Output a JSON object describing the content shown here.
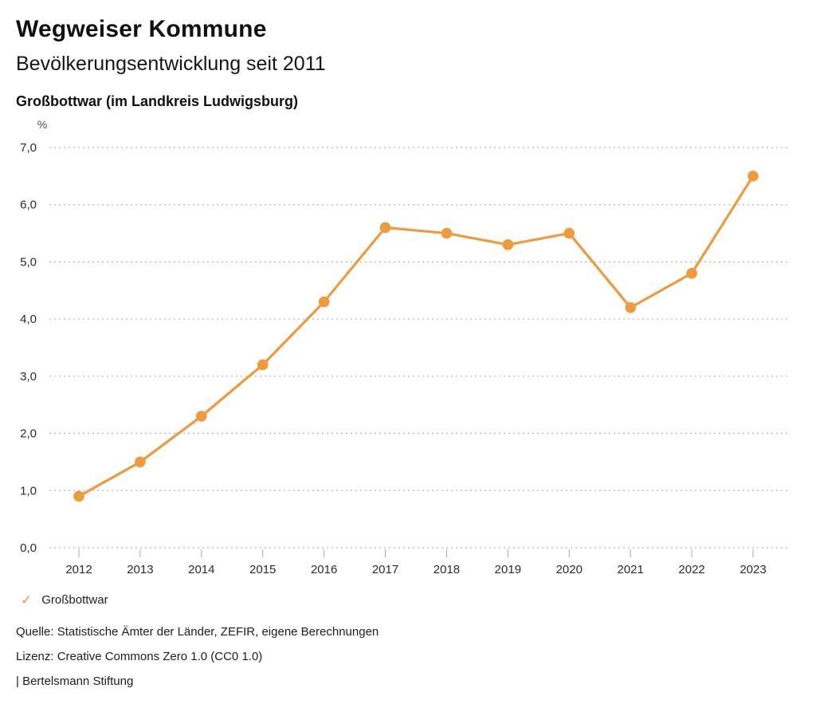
{
  "header": {
    "title": "Wegweiser Kommune",
    "subtitle": "Bevölkerungsentwicklung seit 2011",
    "region": "Großbottwar (im Landkreis Ludwigsburg)"
  },
  "chart_data": {
    "type": "line",
    "title": "Bevölkerungsentwicklung seit 2011",
    "xlabel": "",
    "ylabel": "%",
    "x": [
      2012,
      2013,
      2014,
      2015,
      2016,
      2017,
      2018,
      2019,
      2020,
      2021,
      2022,
      2023
    ],
    "series": [
      {
        "name": "Großbottwar",
        "values": [
          0.9,
          1.5,
          2.3,
          3.2,
          4.3,
          5.6,
          5.5,
          5.3,
          5.5,
          4.2,
          4.8,
          6.5
        ],
        "color": "#EF9A3C"
      }
    ],
    "ylim": [
      0,
      7
    ],
    "ytick_step": 1,
    "ytick_labels": [
      "0,0",
      "1,0",
      "2,0",
      "3,0",
      "4,0",
      "5,0",
      "6,0",
      "7,0"
    ],
    "grid": "horizontal-dotted",
    "legend_position": "bottom-left"
  },
  "legend": {
    "check_icon": "✓",
    "label": "Großbottwar"
  },
  "footer": {
    "source": "Quelle: Statistische Ämter der Länder, ZEFIR, eigene Berechnungen",
    "license": "Lizenz: Creative Commons Zero 1.0 (CC0 1.0)",
    "attribution": "| Bertelsmann Stiftung"
  },
  "colors": {
    "accent": "#EF9A3C",
    "text": "#1d1d1d",
    "tick_text": "#2b2b2b",
    "unit_text": "#4d4d4d",
    "grid": "#b8b8b8",
    "tick_mark": "#a8a8a8"
  }
}
